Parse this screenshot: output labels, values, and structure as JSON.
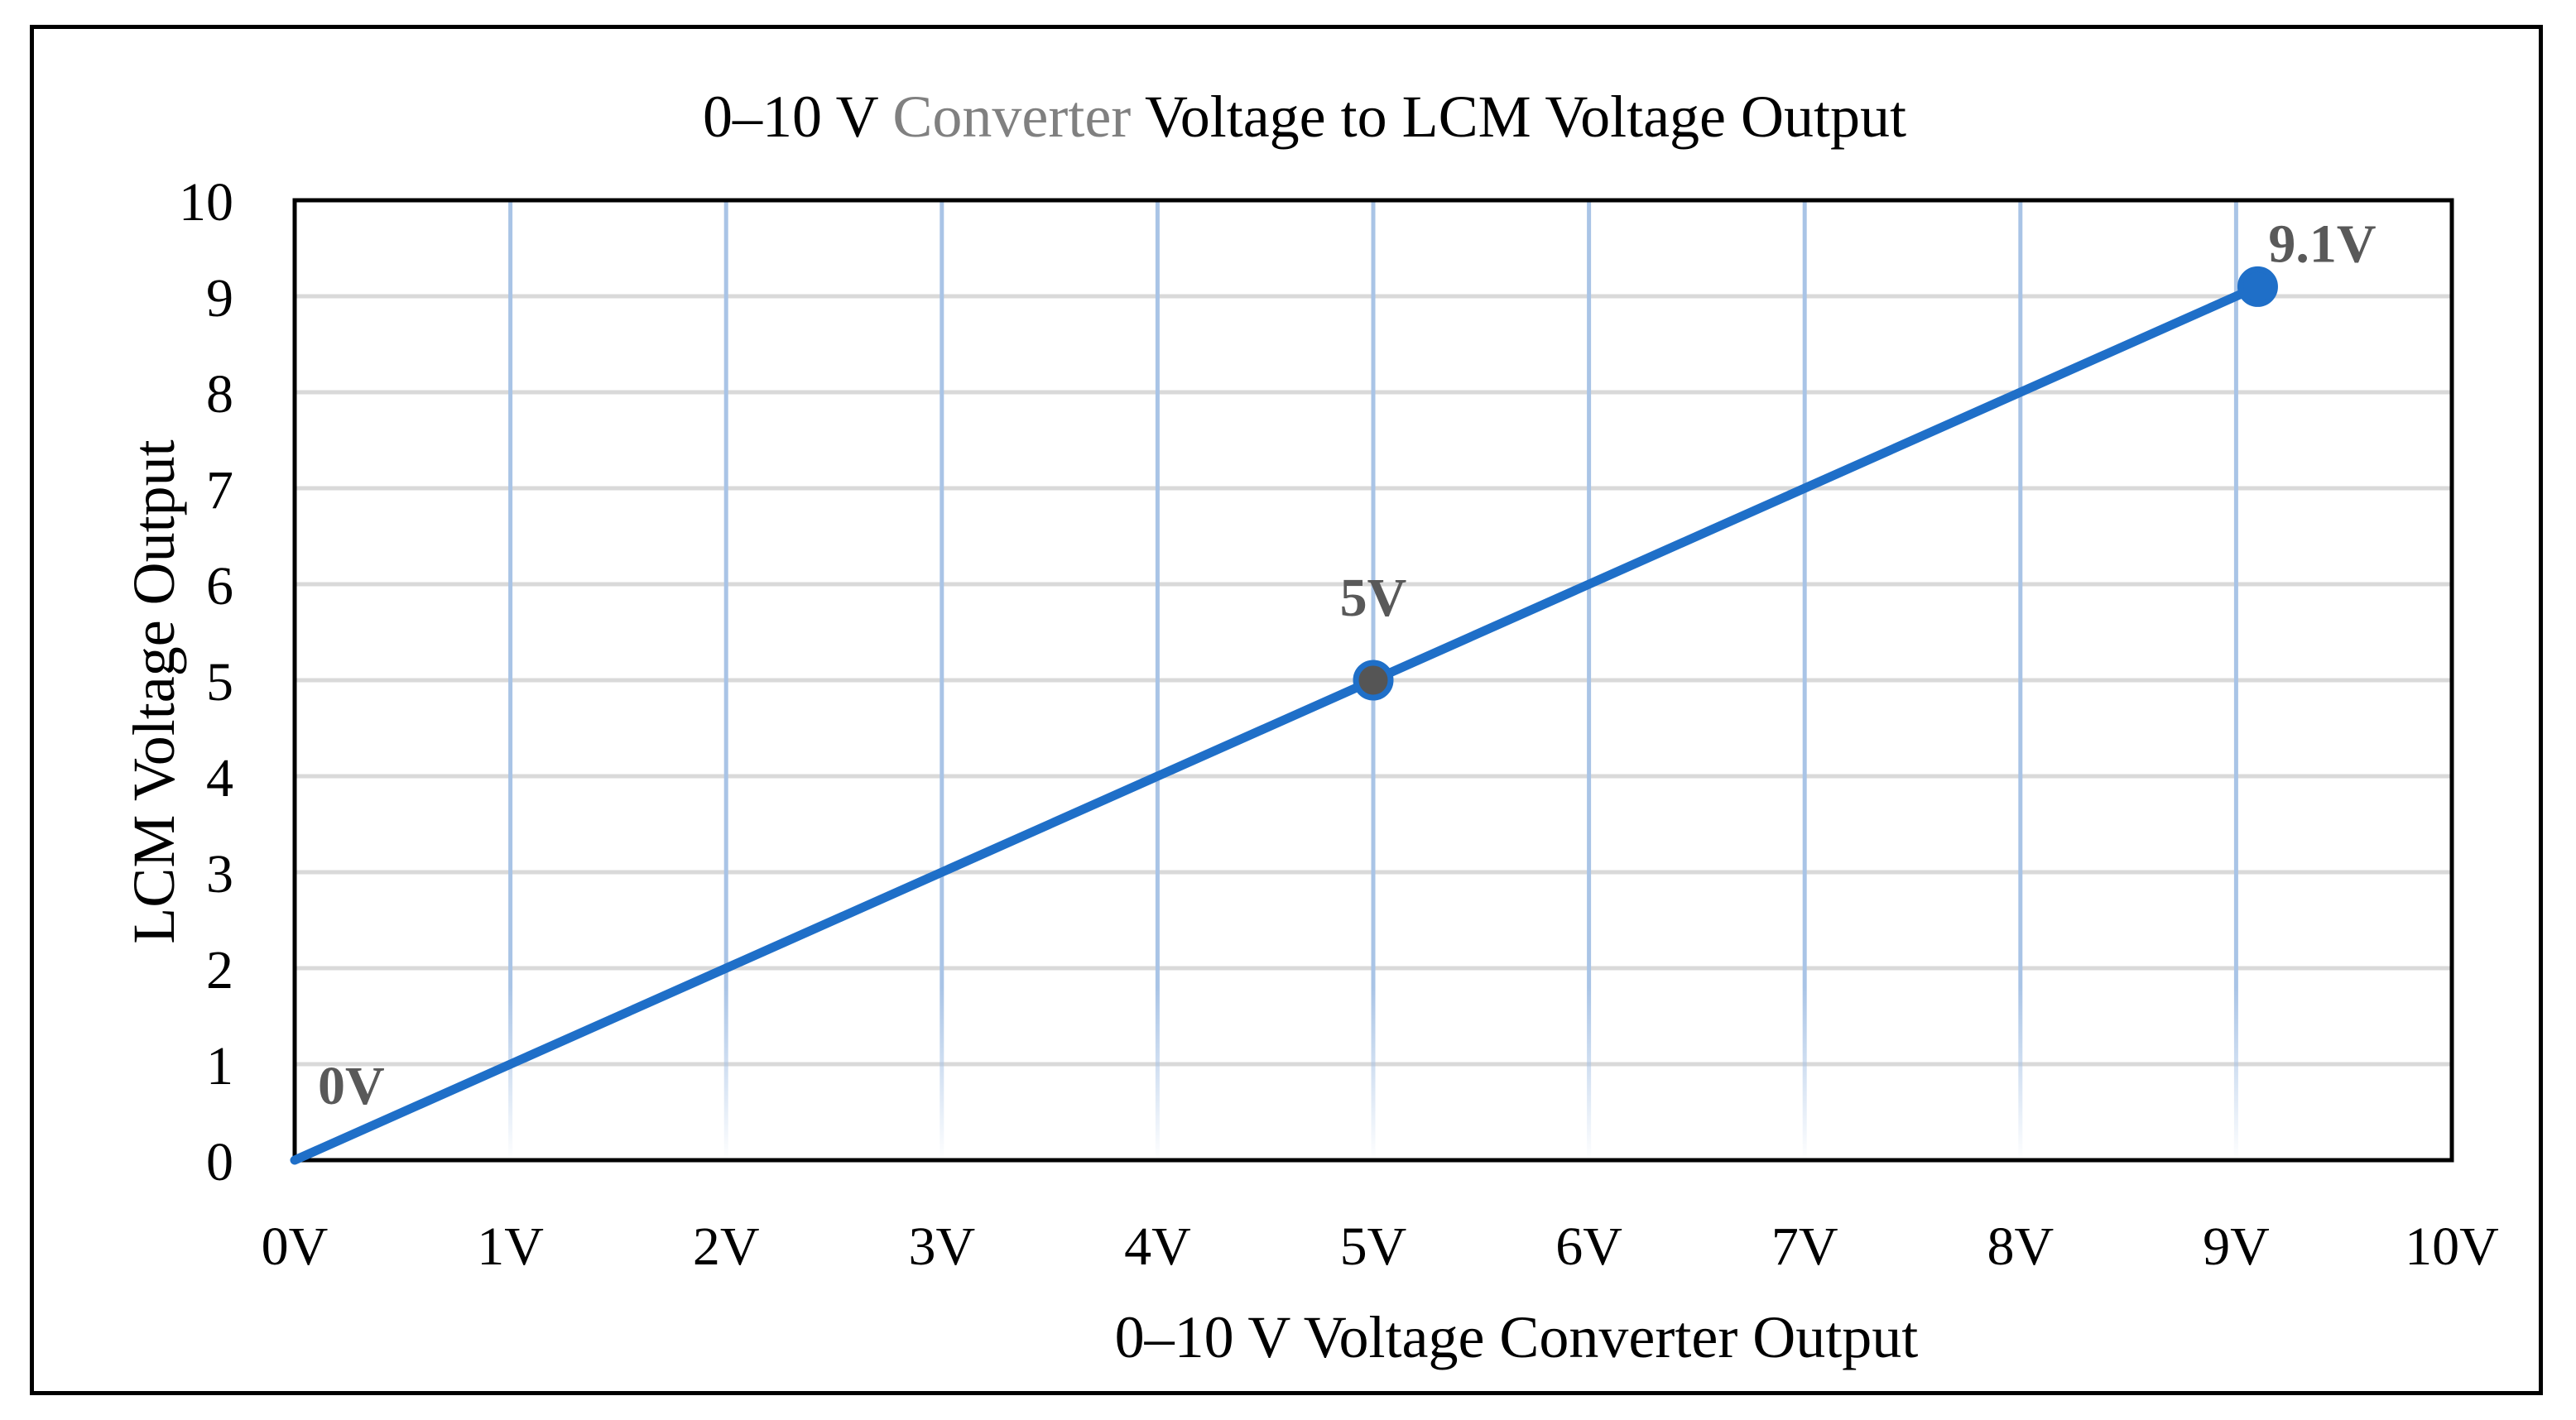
{
  "chart_data": {
    "type": "line",
    "title_parts": [
      {
        "text": "0–10 V ",
        "color": "#000000"
      },
      {
        "text": "Converter",
        "color": "#808080"
      },
      {
        "text": " Voltage  to LCM Voltage Output",
        "color": "#000000"
      }
    ],
    "xlabel": "0–10 V Voltage Converter Output",
    "ylabel": "LCM Voltage Output",
    "xlim": [
      0,
      10
    ],
    "ylim": [
      0,
      10
    ],
    "x_ticks": [
      0,
      1,
      2,
      3,
      4,
      5,
      6,
      7,
      8,
      9,
      10
    ],
    "x_tick_labels": [
      "0V",
      "1V",
      "2V",
      "3V",
      "4V",
      "5V",
      "6V",
      "7V",
      "8V",
      "9V",
      "10V"
    ],
    "y_ticks": [
      0,
      1,
      2,
      3,
      4,
      5,
      6,
      7,
      8,
      9,
      10
    ],
    "y_tick_labels": [
      "0",
      "1",
      "2",
      "3",
      "4",
      "5",
      "6",
      "7",
      "8",
      "9",
      "10"
    ],
    "grid": true,
    "series": [
      {
        "name": "LCM Voltage Output",
        "color": "#1f6fc8",
        "points": [
          {
            "x": 0,
            "y": 0,
            "label": "0V",
            "marker": false,
            "marker_color": "#1f6fc8"
          },
          {
            "x": 5,
            "y": 5,
            "label": "5V",
            "marker": true,
            "marker_color": "#555555"
          },
          {
            "x": 9.1,
            "y": 9.1,
            "label": "9.1V",
            "marker": true,
            "marker_color": "#1f6fc8"
          }
        ]
      }
    ],
    "colors": {
      "line": "#1f6fc8",
      "h_grid": "#d9d9d9",
      "v_grid": "#a9c4e6",
      "data_label": "#595959",
      "axis": "#000000"
    }
  }
}
